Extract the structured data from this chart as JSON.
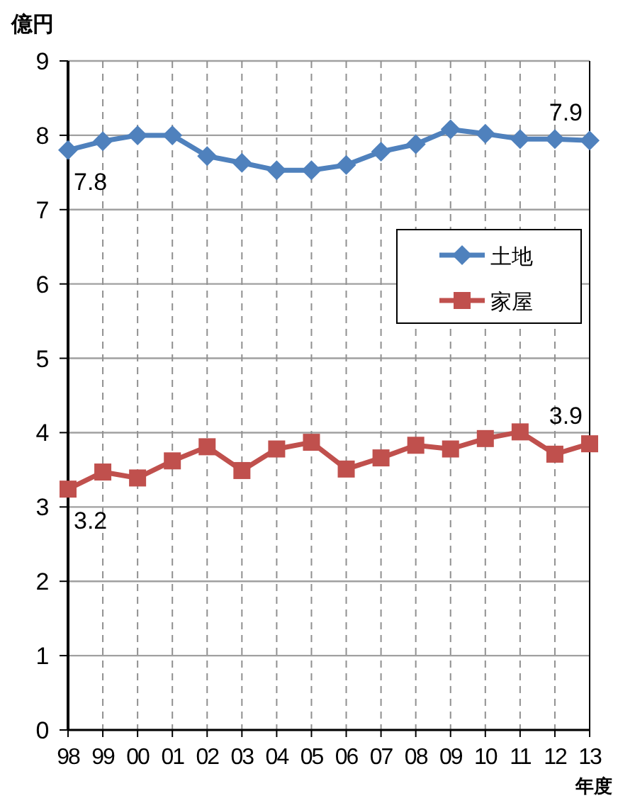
{
  "chart_data": {
    "type": "line",
    "ylabel": "億円",
    "xlabel": "年度",
    "categories": [
      "98",
      "99",
      "00",
      "01",
      "02",
      "03",
      "04",
      "05",
      "06",
      "07",
      "08",
      "09",
      "10",
      "11",
      "12",
      "13"
    ],
    "series": [
      {
        "name": "土地",
        "color": "#4f81bd",
        "marker": "diamond",
        "values": [
          7.8,
          7.92,
          8.0,
          8.0,
          7.72,
          7.63,
          7.53,
          7.53,
          7.6,
          7.78,
          7.88,
          8.08,
          8.02,
          7.95,
          7.95,
          7.93
        ],
        "value_labels": [
          "7.8",
          null,
          null,
          null,
          null,
          null,
          null,
          null,
          null,
          null,
          null,
          null,
          null,
          null,
          null,
          "7.9"
        ]
      },
      {
        "name": "家屋",
        "color": "#c0504d",
        "marker": "square",
        "values": [
          3.24,
          3.47,
          3.39,
          3.62,
          3.81,
          3.49,
          3.78,
          3.87,
          3.51,
          3.66,
          3.83,
          3.78,
          3.92,
          4.01,
          3.71,
          3.85
        ],
        "value_labels": [
          "3.2",
          null,
          null,
          null,
          null,
          null,
          null,
          null,
          null,
          null,
          null,
          null,
          null,
          null,
          null,
          "3.9"
        ]
      }
    ],
    "ylim": [
      0,
      9
    ],
    "yticks": [
      0,
      1,
      2,
      3,
      4,
      5,
      6,
      7,
      8,
      9
    ],
    "grid": true,
    "legend": "right"
  }
}
